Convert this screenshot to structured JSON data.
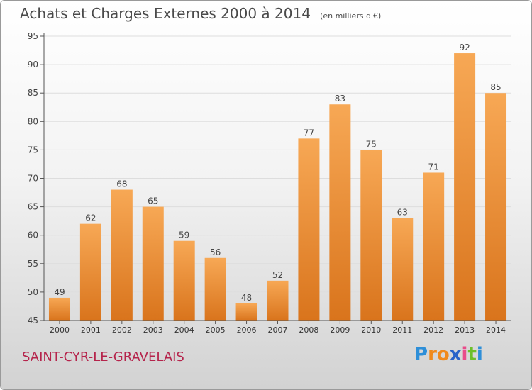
{
  "title": "Achats et Charges Externes 2000 à 2014",
  "subtitle": "(en milliers d'€)",
  "location": "SAINT-CYR-LE-GRAVELAIS",
  "logo": {
    "letters": [
      "P",
      "r",
      "o",
      "x",
      "i",
      "t",
      "i"
    ],
    "colors": [
      "#2e8fd8",
      "#f08a1c",
      "#f08a1c",
      "#2a63c9",
      "#e94b8a",
      "#6cbf2a",
      "#2e8fd8"
    ]
  },
  "colors": {
    "bar_top": "#f7a855",
    "bar_bottom": "#d9741c",
    "axis": "#555555",
    "grid": "#dddddd"
  },
  "chart_data": {
    "type": "bar",
    "title": "Achats et Charges Externes 2000 à 2014",
    "subtitle": "(en milliers d'€)",
    "categories": [
      "2000",
      "2001",
      "2002",
      "2003",
      "2004",
      "2005",
      "2006",
      "2007",
      "2008",
      "2009",
      "2010",
      "2011",
      "2012",
      "2013",
      "2014"
    ],
    "values": [
      49,
      62,
      68,
      65,
      59,
      56,
      48,
      52,
      77,
      83,
      75,
      63,
      71,
      92,
      85
    ],
    "ylim": [
      45,
      95
    ],
    "yticks": [
      45,
      50,
      55,
      60,
      65,
      70,
      75,
      80,
      85,
      90,
      95
    ],
    "grid": true,
    "data_labels": true
  }
}
